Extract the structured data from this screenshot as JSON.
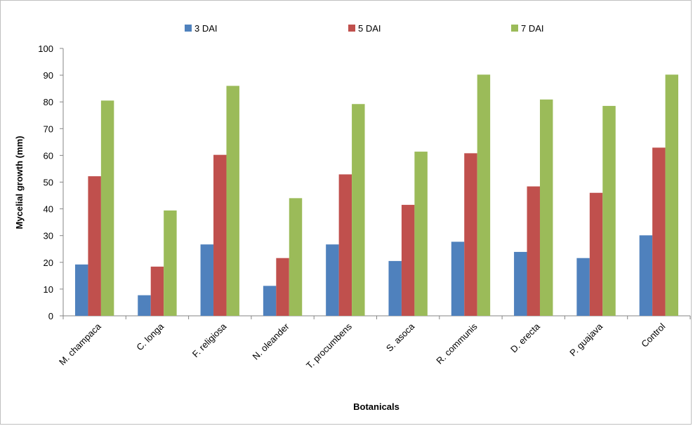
{
  "chart_data": {
    "type": "bar",
    "title": "",
    "xlabel": "Botanicals",
    "ylabel": "Mycelial growth (mm)",
    "ylim": [
      0,
      100
    ],
    "yticks": [
      0,
      10,
      20,
      30,
      40,
      50,
      60,
      70,
      80,
      90,
      100
    ],
    "grid": false,
    "legend_position": "top",
    "categories": [
      "M. champaca",
      "C. longa",
      "F. religiosa",
      "N. oleander",
      "T. procumbens",
      "S. asoca",
      "R. communis",
      "D. erecta",
      "P. guajava",
      "Control"
    ],
    "series": [
      {
        "name": "3 DAI",
        "color": "#4f81bd",
        "values": [
          19.2,
          7.7,
          26.7,
          11.2,
          26.7,
          20.5,
          27.7,
          23.9,
          21.6,
          30.1
        ]
      },
      {
        "name": "5 DAI",
        "color": "#c0504d",
        "values": [
          52.2,
          18.4,
          60.2,
          21.6,
          52.9,
          41.5,
          60.8,
          48.4,
          46.0,
          62.9
        ]
      },
      {
        "name": "7 DAI",
        "color": "#9bbb59",
        "values": [
          80.5,
          39.4,
          86.0,
          44.0,
          79.2,
          61.4,
          90.2,
          80.9,
          78.5,
          90.2
        ]
      }
    ]
  }
}
